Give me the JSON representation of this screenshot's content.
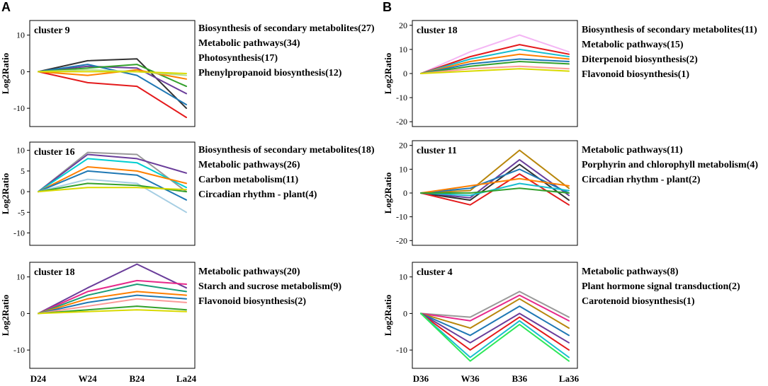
{
  "panel_labels": [
    "A",
    "B"
  ],
  "chart_data": [
    {
      "type": "line",
      "panel": "A",
      "title": "cluster 9",
      "ylabel": "Log2Ratio",
      "x": [
        "D24",
        "W24",
        "B24",
        "La24"
      ],
      "ylim": [
        -15,
        14
      ],
      "yticks": [
        10,
        0,
        -10
      ],
      "series": [
        {
          "name": "profile-1",
          "values": [
            0,
            3,
            3.5,
            -10
          ],
          "color": "#333333"
        },
        {
          "name": "profile-2",
          "values": [
            0,
            -3,
            -4,
            -12.5
          ],
          "color": "#e41a1c"
        },
        {
          "name": "profile-3",
          "values": [
            0,
            1.5,
            1,
            -6
          ],
          "color": "#6a3d9a"
        },
        {
          "name": "profile-4",
          "values": [
            0,
            2,
            -1,
            -9
          ],
          "color": "#1f78b4"
        },
        {
          "name": "profile-5",
          "values": [
            0,
            1,
            2,
            -4
          ],
          "color": "#33a02c"
        },
        {
          "name": "profile-6",
          "values": [
            0,
            -1,
            0.5,
            -2
          ],
          "color": "#ff7f00"
        },
        {
          "name": "profile-7",
          "values": [
            0,
            0.5,
            0,
            -1
          ],
          "color": "#b2df8a"
        },
        {
          "name": "profile-8",
          "values": [
            0,
            0,
            0,
            -0.5
          ],
          "color": "#d9d900"
        }
      ],
      "pathways": [
        "Biosynthesis of secondary metabolites(27)",
        "Metabolic pathways(34)",
        "Photosynthesis(17)",
        "Phenylpropanoid biosynthesis(12)"
      ]
    },
    {
      "type": "line",
      "panel": "A",
      "title": "cluster 16",
      "ylabel": "Log2Ratio",
      "x": [
        "D24",
        "W24",
        "B24",
        "La24"
      ],
      "ylim": [
        -13,
        12
      ],
      "yticks": [
        10,
        5,
        0,
        -5,
        -10
      ],
      "series": [
        {
          "name": "profile-1",
          "values": [
            0,
            9.5,
            9,
            0
          ],
          "color": "#999999"
        },
        {
          "name": "profile-2",
          "values": [
            0,
            9,
            8,
            4.5
          ],
          "color": "#6a3d9a"
        },
        {
          "name": "profile-3",
          "values": [
            0,
            8,
            7,
            1
          ],
          "color": "#00ced1"
        },
        {
          "name": "profile-4",
          "values": [
            0,
            6,
            5,
            2
          ],
          "color": "#ff7f00"
        },
        {
          "name": "profile-5",
          "values": [
            0,
            5,
            4,
            -2
          ],
          "color": "#1f78b4"
        },
        {
          "name": "profile-6",
          "values": [
            0,
            3,
            2,
            -5
          ],
          "color": "#a6cee3"
        },
        {
          "name": "profile-7",
          "values": [
            0,
            2,
            1.5,
            0
          ],
          "color": "#33a02c"
        },
        {
          "name": "profile-8",
          "values": [
            0,
            1,
            1,
            0.5
          ],
          "color": "#d9d900"
        }
      ],
      "pathways": [
        "Biosynthesis of secondary metabolites(18)",
        "Metabolic pathways(26)",
        "Carbon metabolism(11)",
        "Circadian rhythm - plant(4)"
      ]
    },
    {
      "type": "line",
      "panel": "A",
      "title": "cluster 18",
      "ylabel": "Log2Ratio",
      "x": [
        "D24",
        "W24",
        "B24",
        "La24"
      ],
      "ylim": [
        -15,
        14
      ],
      "yticks": [
        10,
        0,
        -10
      ],
      "series": [
        {
          "name": "profile-1",
          "values": [
            0,
            7,
            13.5,
            7
          ],
          "color": "#6a3d9a"
        },
        {
          "name": "profile-2",
          "values": [
            0,
            6,
            9,
            8
          ],
          "color": "#e7298a"
        },
        {
          "name": "profile-3",
          "values": [
            0,
            5,
            8,
            6
          ],
          "color": "#1b9e77"
        },
        {
          "name": "profile-4",
          "values": [
            0,
            4,
            6,
            5
          ],
          "color": "#ff7f00"
        },
        {
          "name": "profile-5",
          "values": [
            0,
            3,
            5,
            4
          ],
          "color": "#1f78b4"
        },
        {
          "name": "profile-6",
          "values": [
            0,
            2,
            4,
            3
          ],
          "color": "#fb9a99"
        },
        {
          "name": "profile-7",
          "values": [
            0,
            1,
            2,
            1
          ],
          "color": "#33a02c"
        },
        {
          "name": "profile-8",
          "values": [
            0,
            0.5,
            1,
            0.5
          ],
          "color": "#d9d900"
        }
      ],
      "pathways": [
        "Metabolic pathways(20)",
        "Starch and sucrose metabolism(9)",
        "Flavonoid biosynthesis(2)"
      ]
    },
    {
      "type": "line",
      "panel": "B",
      "title": "cluster 18",
      "ylabel": "Log2Ratio",
      "x": [
        "D36",
        "W36",
        "B36",
        "La36"
      ],
      "ylim": [
        -22,
        22
      ],
      "yticks": [
        20,
        10,
        0,
        -10,
        -20
      ],
      "series": [
        {
          "name": "profile-1",
          "values": [
            0,
            9,
            16,
            9
          ],
          "color": "#f4b6f4"
        },
        {
          "name": "profile-2",
          "values": [
            0,
            7,
            12,
            8
          ],
          "color": "#e41a1c"
        },
        {
          "name": "profile-3",
          "values": [
            0,
            6,
            10,
            7
          ],
          "color": "#17becf"
        },
        {
          "name": "profile-4",
          "values": [
            0,
            5,
            8,
            6
          ],
          "color": "#ff7f00"
        },
        {
          "name": "profile-5",
          "values": [
            0,
            4,
            6,
            5
          ],
          "color": "#1f78b4"
        },
        {
          "name": "profile-6",
          "values": [
            0,
            3,
            5,
            4
          ],
          "color": "#33a02c"
        },
        {
          "name": "profile-7",
          "values": [
            0,
            2,
            3,
            2
          ],
          "color": "#fb9a99"
        },
        {
          "name": "profile-8",
          "values": [
            0,
            1,
            2,
            1
          ],
          "color": "#d9d900"
        }
      ],
      "pathways": [
        "Biosynthesis of secondary metabolites(11)",
        "Metabolic pathways(15)",
        "Diterpenoid biosynthesis(2)",
        "Flavonoid biosynthesis(1)"
      ]
    },
    {
      "type": "line",
      "panel": "B",
      "title": "cluster 11",
      "ylabel": "Log2Ratio",
      "x": [
        "D36",
        "W36",
        "B36",
        "La36"
      ],
      "ylim": [
        -22,
        22
      ],
      "yticks": [
        20,
        10,
        0,
        -10,
        -20
      ],
      "series": [
        {
          "name": "profile-1",
          "values": [
            0,
            1,
            18,
            2
          ],
          "color": "#b8860b"
        },
        {
          "name": "profile-2",
          "values": [
            0,
            -2,
            14,
            -1
          ],
          "color": "#6a3d9a"
        },
        {
          "name": "profile-3",
          "values": [
            0,
            -3,
            12,
            -3
          ],
          "color": "#333333"
        },
        {
          "name": "profile-4",
          "values": [
            0,
            2,
            10,
            0
          ],
          "color": "#1f78b4"
        },
        {
          "name": "profile-5",
          "values": [
            0,
            -5,
            8,
            -5
          ],
          "color": "#e41a1c"
        },
        {
          "name": "profile-6",
          "values": [
            0,
            3,
            6,
            3
          ],
          "color": "#ff7f00"
        },
        {
          "name": "profile-7",
          "values": [
            0,
            -1,
            4,
            1
          ],
          "color": "#17becf"
        },
        {
          "name": "profile-8",
          "values": [
            0,
            0,
            2,
            0
          ],
          "color": "#33a02c"
        }
      ],
      "pathways": [
        "Metabolic pathways(11)",
        "Porphyrin and chlorophyll metabolism(4)",
        "Circadian rhythm - plant(2)"
      ]
    },
    {
      "type": "line",
      "panel": "B",
      "title": "cluster 4",
      "ylabel": "Log2Ratio",
      "x": [
        "D36",
        "W36",
        "B36",
        "La36"
      ],
      "ylim": [
        -15,
        14
      ],
      "yticks": [
        10,
        0,
        -10
      ],
      "series": [
        {
          "name": "profile-1",
          "values": [
            0,
            -1,
            6,
            -1
          ],
          "color": "#999999"
        },
        {
          "name": "profile-2",
          "values": [
            0,
            -2,
            5,
            -2
          ],
          "color": "#e7298a"
        },
        {
          "name": "profile-3",
          "values": [
            0,
            -4,
            4,
            -4
          ],
          "color": "#b8860b"
        },
        {
          "name": "profile-4",
          "values": [
            0,
            -6,
            2,
            -6
          ],
          "color": "#1f78b4"
        },
        {
          "name": "profile-5",
          "values": [
            0,
            -8,
            0,
            -8
          ],
          "color": "#6a3d9a"
        },
        {
          "name": "profile-6",
          "values": [
            0,
            -10,
            -1,
            -10
          ],
          "color": "#e41a1c"
        },
        {
          "name": "profile-7",
          "values": [
            0,
            -12,
            -2,
            -12
          ],
          "color": "#17becf"
        },
        {
          "name": "profile-8",
          "values": [
            0,
            -13,
            -3,
            -13
          ],
          "color": "#2ee85a"
        }
      ],
      "pathways": [
        "Metabolic pathways(8)",
        "Plant hormone signal transduction(2)",
        "Carotenoid biosynthesis(1)"
      ]
    }
  ]
}
